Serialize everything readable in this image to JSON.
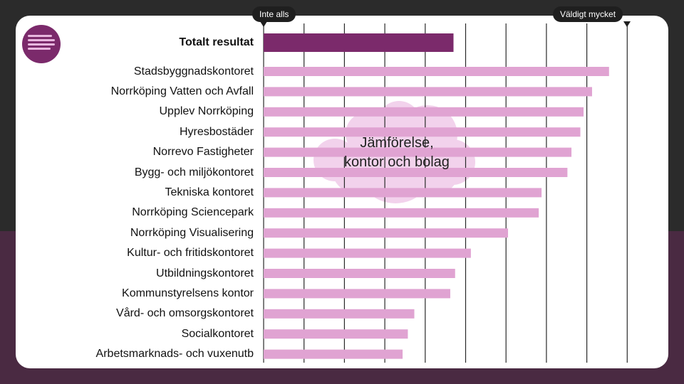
{
  "scale": {
    "min_label": "Inte alls",
    "max_label": "Väldigt mycket"
  },
  "cloud": {
    "text": "Jämförelse,\nkontor och bolag"
  },
  "chart_data": {
    "type": "bar",
    "orientation": "horizontal",
    "title": "",
    "xlim": [
      0,
      9
    ],
    "grid": true,
    "colors": {
      "total": "#7b2a6b",
      "units": "#e0a3d2"
    },
    "categories": [
      "Totalt resultat",
      "Stadsbyggnadskontoret",
      "Norrköping Vatten och Avfall",
      "Upplev Norrköping",
      "Hyresbostäder",
      "Norrevo Fastigheter",
      "Bygg- och miljökontoret",
      "Tekniska kontoret",
      "Norrköping Sciencepark",
      "Norrköping Visualisering",
      "Kultur- och fritidskontoret",
      "Utbildningskontoret",
      "Kommunstyrelsens kontor",
      "Vård- och omsorgskontoret",
      "Socialkontoret",
      "Arbetsmarknads- och vuxenutb"
    ],
    "values": [
      4.7,
      8.55,
      8.13,
      7.92,
      7.84,
      7.62,
      7.52,
      6.88,
      6.81,
      6.05,
      5.13,
      4.74,
      4.62,
      3.73,
      3.57,
      3.44
    ]
  }
}
